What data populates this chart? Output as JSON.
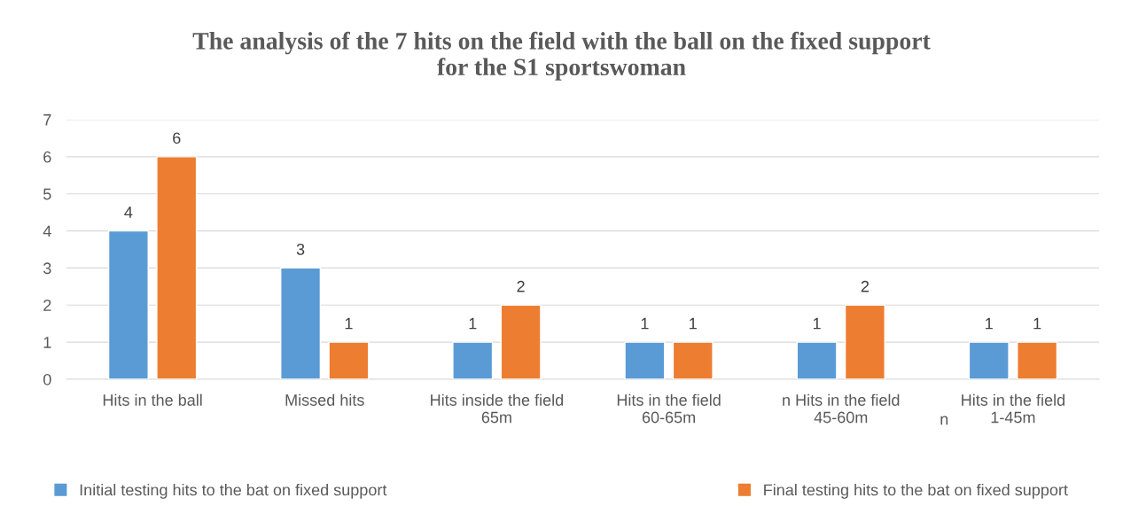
{
  "chart_data": {
    "type": "bar",
    "title": "The analysis of the 7 hits on the field with the ball on the fixed support\nfor the S1 sportswoman",
    "categories": [
      "Hits in the ball",
      "Missed hits",
      "Hits inside the field\n65m",
      "Hits in the field\n60-65m",
      "n Hits in the field\n45-60m",
      "Hits in the field\n1-45m"
    ],
    "series": [
      {
        "name": "Initial testing hits to the bat on fixed support",
        "color": "#5b9bd5",
        "values": [
          4,
          3,
          1,
          1,
          1,
          1
        ]
      },
      {
        "name": "Final testing hits to the bat on fixed support",
        "color": "#ed7d31",
        "values": [
          6,
          1,
          2,
          1,
          2,
          1
        ]
      }
    ],
    "ylim": [
      0,
      7
    ],
    "yticks": [
      0,
      1,
      2,
      3,
      4,
      5,
      6,
      7
    ],
    "grid": "y",
    "data_labels": true,
    "legend": "bottom",
    "annotations": [
      "n"
    ]
  }
}
